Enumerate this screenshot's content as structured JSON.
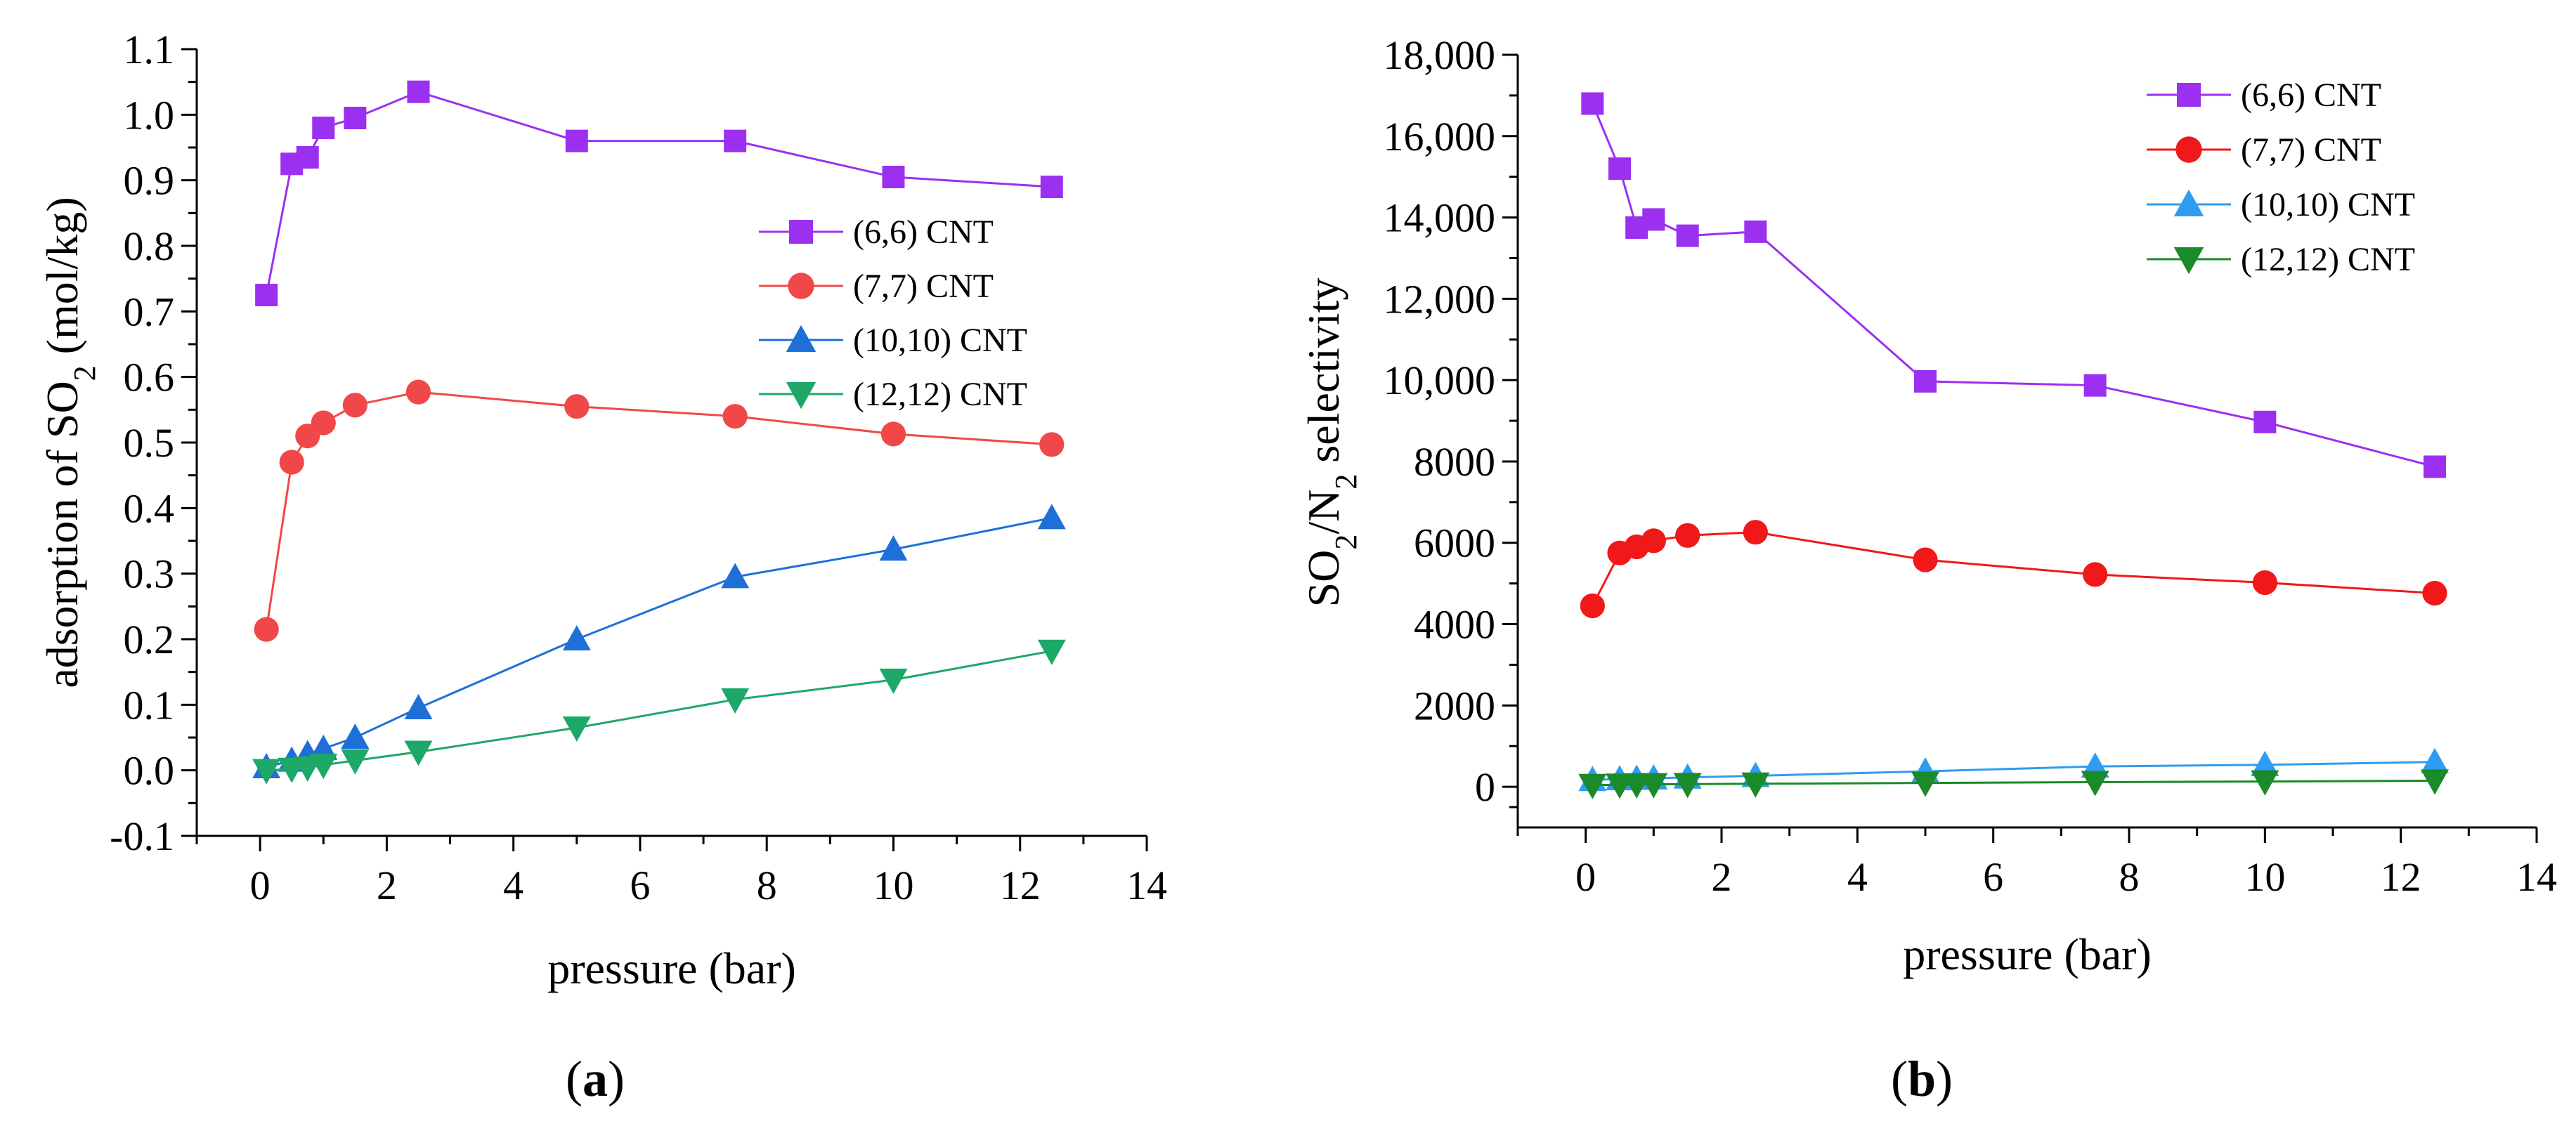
{
  "chart_data": [
    {
      "type": "line",
      "panel": "a",
      "caption": "(a)",
      "caption_parts": [
        "(",
        "a",
        ")"
      ],
      "x": [
        0.1,
        0.5,
        0.75,
        1.0,
        1.5,
        2.5,
        5.0,
        7.5,
        10.0,
        12.5
      ],
      "xlabel": "pressure (bar)",
      "ylabel": "adsorption of SO2 (mol/kg)",
      "ylabel_parts": [
        "adsorption of SO",
        "2",
        " (mol/kg)"
      ],
      "xlim": [
        -1,
        14
      ],
      "ylim": [
        -0.1,
        1.1
      ],
      "xticks": [
        0,
        2,
        4,
        6,
        8,
        10,
        12,
        14
      ],
      "xtick_labels": [
        "0",
        "2",
        "4",
        "6",
        "8",
        "10",
        "12",
        "14"
      ],
      "yticks": [
        -0.1,
        0.0,
        0.1,
        0.2,
        0.3,
        0.4,
        0.5,
        0.6,
        0.7,
        0.8,
        0.9,
        1.0,
        1.1
      ],
      "ytick_labels": [
        "-0.1",
        "0.0",
        "0.1",
        "0.2",
        "0.3",
        "0.4",
        "0.5",
        "0.6",
        "0.7",
        "0.8",
        "0.9",
        "1.0",
        "1.1"
      ],
      "legend_position": "middle-right",
      "series": [
        {
          "name": "(6,6) CNT",
          "marker": "square",
          "color": "#9b30f0",
          "values": [
            0.725,
            0.925,
            0.935,
            0.98,
            0.995,
            1.035,
            0.96,
            0.96,
            0.905,
            0.89
          ]
        },
        {
          "name": "(7,7) CNT",
          "marker": "circle",
          "color": "#f04848",
          "values": [
            0.215,
            0.47,
            0.51,
            0.53,
            0.557,
            0.577,
            0.555,
            0.54,
            0.513,
            0.497
          ]
        },
        {
          "name": "(10,10) CNT",
          "marker": "triangle-up",
          "color": "#1f6fd8",
          "values": [
            0.005,
            0.015,
            0.025,
            0.033,
            0.05,
            0.095,
            0.2,
            0.295,
            0.337,
            0.385
          ]
        },
        {
          "name": "(12,12) CNT",
          "marker": "triangle-down",
          "color": "#1ea868",
          "values": [
            0.0,
            0.002,
            0.004,
            0.008,
            0.015,
            0.028,
            0.065,
            0.108,
            0.138,
            0.182
          ]
        }
      ]
    },
    {
      "type": "line",
      "panel": "b",
      "caption": "(b)",
      "caption_parts": [
        "(",
        "b",
        ")"
      ],
      "x": [
        0.1,
        0.5,
        0.75,
        1.0,
        1.5,
        2.5,
        5.0,
        7.5,
        10.0,
        12.5
      ],
      "xlabel": "pressure (bar)",
      "ylabel": "SO2/N2 selectivity",
      "ylabel_parts": [
        "SO",
        "2",
        "/N",
        "2",
        " selectivity"
      ],
      "xlim": [
        -1,
        14
      ],
      "ylim": [
        -1000,
        18000
      ],
      "xticks": [
        0,
        2,
        4,
        6,
        8,
        10,
        12,
        14
      ],
      "xtick_labels": [
        "0",
        "2",
        "4",
        "6",
        "8",
        "10",
        "12",
        "14"
      ],
      "yticks": [
        0,
        2000,
        4000,
        6000,
        8000,
        10000,
        12000,
        14000,
        16000,
        18000
      ],
      "ytick_labels": [
        "0",
        "2000",
        "4000",
        "6000",
        "8000",
        "10,000",
        "12,000",
        "14,000",
        "16,000",
        "18,000"
      ],
      "legend_position": "top-right",
      "series": [
        {
          "name": "(6,6) CNT",
          "marker": "square",
          "color": "#9b30f0",
          "values": [
            16800,
            15200,
            13750,
            13950,
            13550,
            13650,
            9970,
            9870,
            8970,
            7870
          ]
        },
        {
          "name": "(7,7) CNT",
          "marker": "circle",
          "color": "#f01818",
          "values": [
            4450,
            5750,
            5900,
            6050,
            6180,
            6260,
            5580,
            5220,
            5020,
            4760
          ]
        },
        {
          "name": "(10,10) CNT",
          "marker": "triangle-up",
          "color": "#2e9cf0",
          "values": [
            170,
            190,
            200,
            210,
            230,
            270,
            380,
            500,
            540,
            610
          ]
        },
        {
          "name": "(12,12) CNT",
          "marker": "triangle-down",
          "color": "#1a8a2a",
          "values": [
            40,
            50,
            55,
            60,
            65,
            75,
            95,
            115,
            130,
            150
          ]
        }
      ]
    }
  ]
}
